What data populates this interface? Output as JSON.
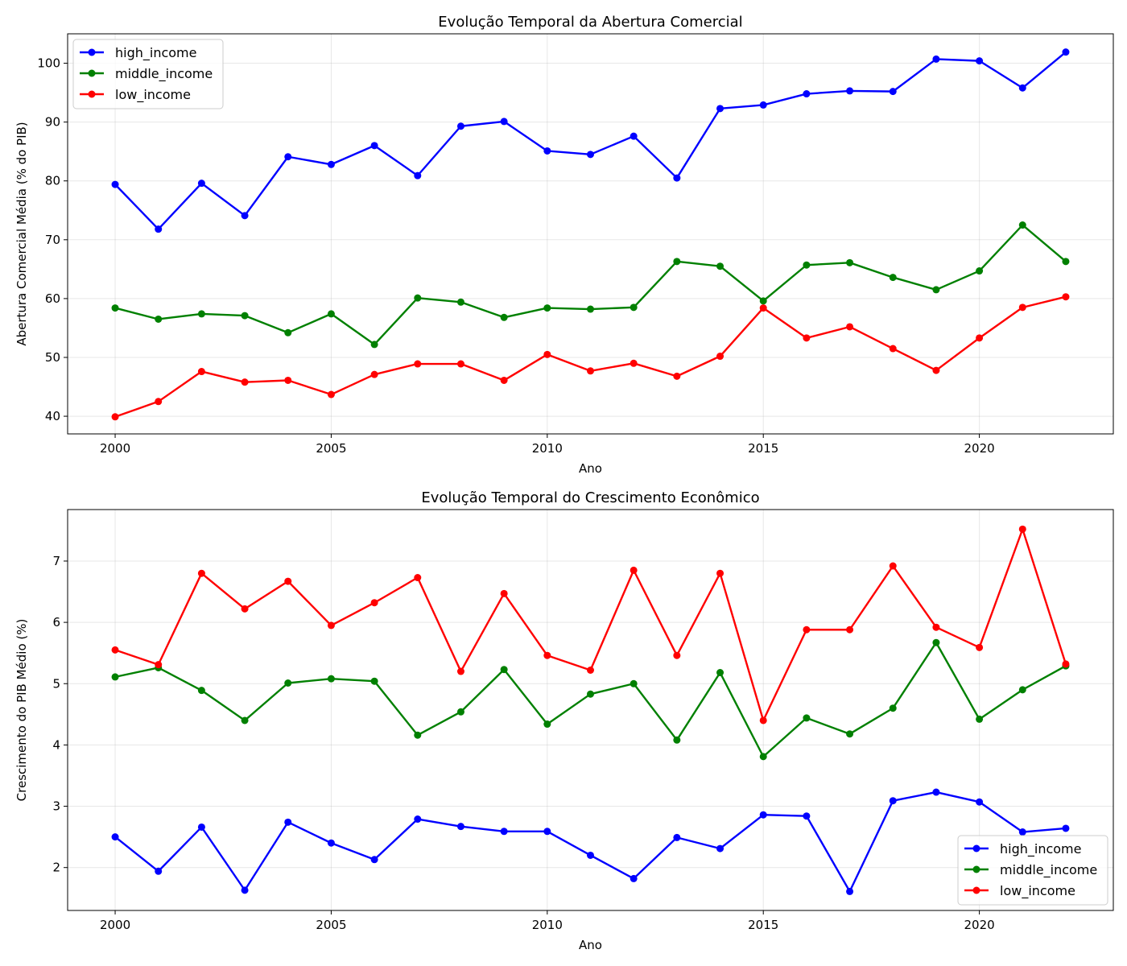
{
  "chart_data": [
    {
      "type": "line",
      "title": "Evolução Temporal da Abertura Comercial",
      "xlabel": "Ano",
      "ylabel": "Abertura Comercial Média (% do PIB)",
      "xlim": [
        1998.9,
        2023.1
      ],
      "ylim": [
        37,
        105
      ],
      "xticks": [
        2000,
        2005,
        2010,
        2015,
        2020
      ],
      "yticks": [
        40,
        50,
        60,
        70,
        80,
        90,
        100
      ],
      "grid": true,
      "legend_position": "top-left",
      "x": [
        2000,
        2001,
        2002,
        2003,
        2004,
        2005,
        2006,
        2007,
        2008,
        2009,
        2010,
        2011,
        2012,
        2013,
        2014,
        2015,
        2016,
        2017,
        2018,
        2019,
        2020,
        2021,
        2022
      ],
      "series": [
        {
          "name": "high_income",
          "color": "#0000ff",
          "values": [
            79.4,
            71.8,
            79.6,
            74.1,
            84.1,
            82.8,
            86.0,
            80.9,
            89.3,
            90.1,
            85.1,
            84.5,
            87.6,
            80.5,
            92.3,
            92.9,
            94.8,
            95.3,
            95.2,
            100.7,
            100.4,
            95.8,
            101.9
          ]
        },
        {
          "name": "middle_income",
          "color": "#008000",
          "values": [
            58.4,
            56.5,
            57.4,
            57.1,
            54.2,
            57.4,
            52.2,
            60.1,
            59.4,
            56.8,
            58.4,
            58.2,
            58.5,
            66.3,
            65.5,
            59.6,
            65.7,
            66.1,
            63.6,
            61.5,
            64.7,
            72.5,
            66.3
          ]
        },
        {
          "name": "low_income",
          "color": "#ff0000",
          "values": [
            39.9,
            42.5,
            47.6,
            45.8,
            46.1,
            43.7,
            47.1,
            48.9,
            48.9,
            46.1,
            50.5,
            47.7,
            49.0,
            46.8,
            50.2,
            58.4,
            53.3,
            55.2,
            51.5,
            47.8,
            53.3,
            58.5,
            60.3
          ]
        }
      ]
    },
    {
      "type": "line",
      "title": "Evolução Temporal do Crescimento Econômico",
      "xlabel": "Ano",
      "ylabel": "Crescimento do PIB Médio (%)",
      "xlim": [
        1998.9,
        2023.1
      ],
      "ylim": [
        1.3,
        7.84
      ],
      "xticks": [
        2000,
        2005,
        2010,
        2015,
        2020
      ],
      "yticks": [
        2,
        3,
        4,
        5,
        6,
        7
      ],
      "grid": true,
      "legend_position": "bottom-right",
      "x": [
        2000,
        2001,
        2002,
        2003,
        2004,
        2005,
        2006,
        2007,
        2008,
        2009,
        2010,
        2011,
        2012,
        2013,
        2014,
        2015,
        2016,
        2017,
        2018,
        2019,
        2020,
        2021,
        2022
      ],
      "series": [
        {
          "name": "high_income",
          "color": "#0000ff",
          "values": [
            2.5,
            1.94,
            2.66,
            1.63,
            2.74,
            2.4,
            2.13,
            2.79,
            2.67,
            2.59,
            2.59,
            2.2,
            1.82,
            2.49,
            2.31,
            2.86,
            2.84,
            1.61,
            3.09,
            3.23,
            3.07,
            2.58,
            2.64
          ]
        },
        {
          "name": "middle_income",
          "color": "#008000",
          "values": [
            5.11,
            5.26,
            4.89,
            4.4,
            5.01,
            5.08,
            5.04,
            4.16,
            4.54,
            5.23,
            4.34,
            4.83,
            5.0,
            4.08,
            5.18,
            3.81,
            4.44,
            4.18,
            4.6,
            5.67,
            4.42,
            4.9,
            5.29
          ]
        },
        {
          "name": "low_income",
          "color": "#ff0000",
          "values": [
            5.55,
            5.31,
            6.8,
            6.22,
            6.67,
            5.95,
            6.32,
            6.73,
            5.2,
            6.47,
            5.46,
            5.22,
            6.85,
            5.46,
            6.8,
            4.4,
            5.88,
            5.88,
            6.92,
            5.92,
            5.59,
            7.52,
            5.32
          ]
        }
      ]
    }
  ]
}
